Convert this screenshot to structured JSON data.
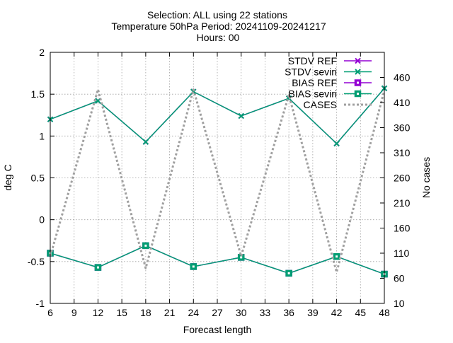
{
  "chart_data": {
    "type": "line",
    "title_lines": [
      "Selection: ALL using    22 stations",
      "Temperature 50hPa   Period: 20241109-20241217",
      "Hours: 00"
    ],
    "xlabel": "Forecast length",
    "ylabel": "deg C",
    "y2label": "No cases",
    "xlim": [
      6,
      48
    ],
    "ylim": [
      -1,
      2
    ],
    "y2lim": [
      10,
      510
    ],
    "xticks": [
      6,
      9,
      12,
      15,
      18,
      21,
      24,
      27,
      30,
      33,
      36,
      39,
      42,
      45,
      48
    ],
    "yticks": [
      -1,
      -0.5,
      0,
      0.5,
      1,
      1.5,
      2
    ],
    "ytick_labels": [
      "-1",
      "-0.5",
      "0",
      "0.5",
      "1",
      "1.5",
      "2"
    ],
    "y2ticks": [
      10,
      60,
      110,
      160,
      210,
      260,
      310,
      360,
      410,
      460
    ],
    "grid": true,
    "legend_position": "top-right",
    "x": [
      6,
      12,
      18,
      24,
      30,
      36,
      42,
      48
    ],
    "series": [
      {
        "name": "STDV REF",
        "axis": "y",
        "color": "#9400d3",
        "marker": "x",
        "values": [
          1.2,
          1.42,
          0.93,
          1.53,
          1.24,
          1.45,
          0.91,
          1.57
        ]
      },
      {
        "name": "STDV seviri",
        "axis": "y",
        "color": "#009e73",
        "marker": "x",
        "values": [
          1.2,
          1.42,
          0.93,
          1.53,
          1.24,
          1.45,
          0.91,
          1.57
        ]
      },
      {
        "name": "BIAS REF",
        "axis": "y",
        "color": "#9400d3",
        "marker": "square",
        "values": [
          -0.4,
          -0.57,
          -0.31,
          -0.56,
          -0.45,
          -0.64,
          -0.44,
          -0.65
        ]
      },
      {
        "name": "BIAS seviri",
        "axis": "y",
        "color": "#009e73",
        "marker": "square",
        "values": [
          -0.4,
          -0.57,
          -0.31,
          -0.56,
          -0.45,
          -0.64,
          -0.44,
          -0.65
        ]
      },
      {
        "name": "CASES",
        "axis": "y2",
        "color": "#a0a0a0",
        "marker": "none",
        "dashed": true,
        "values": [
          104,
          436,
          80,
          436,
          104,
          425,
          72,
          434
        ]
      }
    ]
  }
}
